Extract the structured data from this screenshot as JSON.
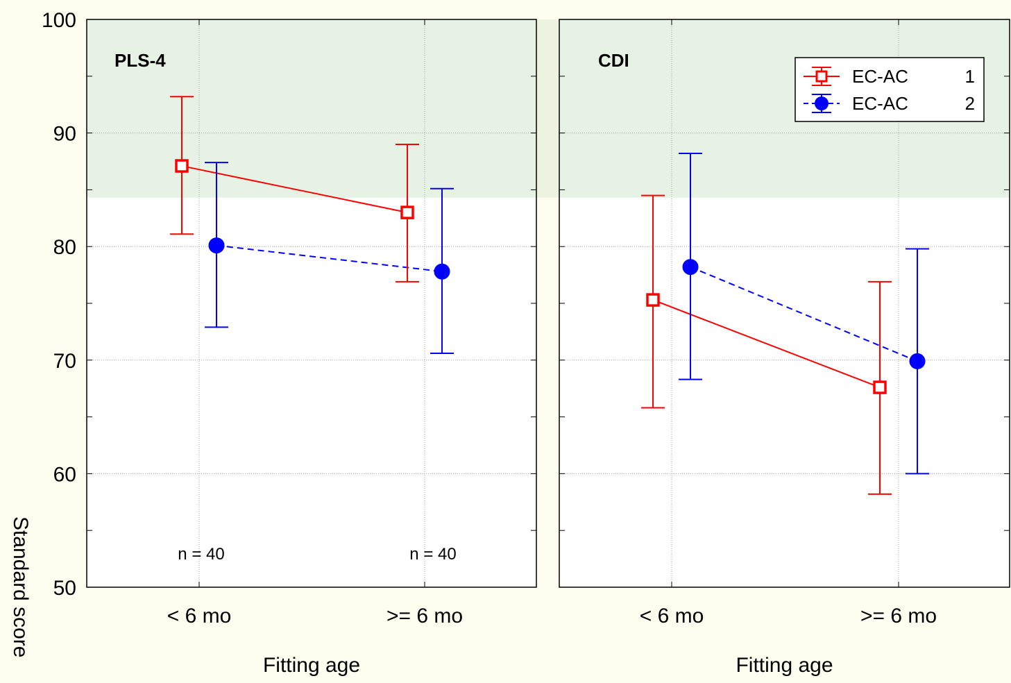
{
  "chart_data": {
    "type": "line",
    "ylabel": "Standard score",
    "ylim": [
      50,
      100
    ],
    "yticks": [
      50,
      60,
      70,
      80,
      90,
      100
    ],
    "y_minor_step": 5,
    "grid": true,
    "grid_style": "dotted",
    "shaded_band": {
      "from": 84.3,
      "to": 100,
      "color": "#E6F2E4"
    },
    "legend": {
      "placement": "top-right",
      "entries": [
        {
          "name": "EC-AC",
          "code": "1"
        },
        {
          "name": "EC-AC",
          "code": "2"
        }
      ]
    },
    "colors": {
      "series_1": "#FF0000",
      "series_2": "#0000FF"
    },
    "panels": [
      {
        "title": "PLS-4",
        "xlabel": "Fitting age",
        "categories": [
          "< 6 mo",
          ">= 6 mo"
        ],
        "annotations": [
          "n = 40",
          "n = 40"
        ],
        "series": [
          {
            "name": "EC-AC 1",
            "marker": "open-square",
            "line": "solid",
            "values": [
              87.1,
              83.0
            ],
            "lower": [
              81.1,
              76.9
            ],
            "upper": [
              93.2,
              89.0
            ]
          },
          {
            "name": "EC-AC 2",
            "marker": "filled-circle",
            "line": "dashed",
            "values": [
              80.1,
              77.8
            ],
            "lower": [
              72.9,
              70.6
            ],
            "upper": [
              87.4,
              85.1
            ]
          }
        ]
      },
      {
        "title": "CDI",
        "xlabel": "Fitting age",
        "categories": [
          "< 6 mo",
          ">= 6 mo"
        ],
        "annotations": [],
        "series": [
          {
            "name": "EC-AC 1",
            "marker": "open-square",
            "line": "solid",
            "values": [
              75.3,
              67.6
            ],
            "lower": [
              65.8,
              58.2
            ],
            "upper": [
              84.5,
              76.9
            ]
          },
          {
            "name": "EC-AC 2",
            "marker": "filled-circle",
            "line": "dashed",
            "values": [
              78.2,
              69.9
            ],
            "lower": [
              68.3,
              60.0
            ],
            "upper": [
              88.2,
              79.8
            ]
          }
        ]
      }
    ]
  }
}
